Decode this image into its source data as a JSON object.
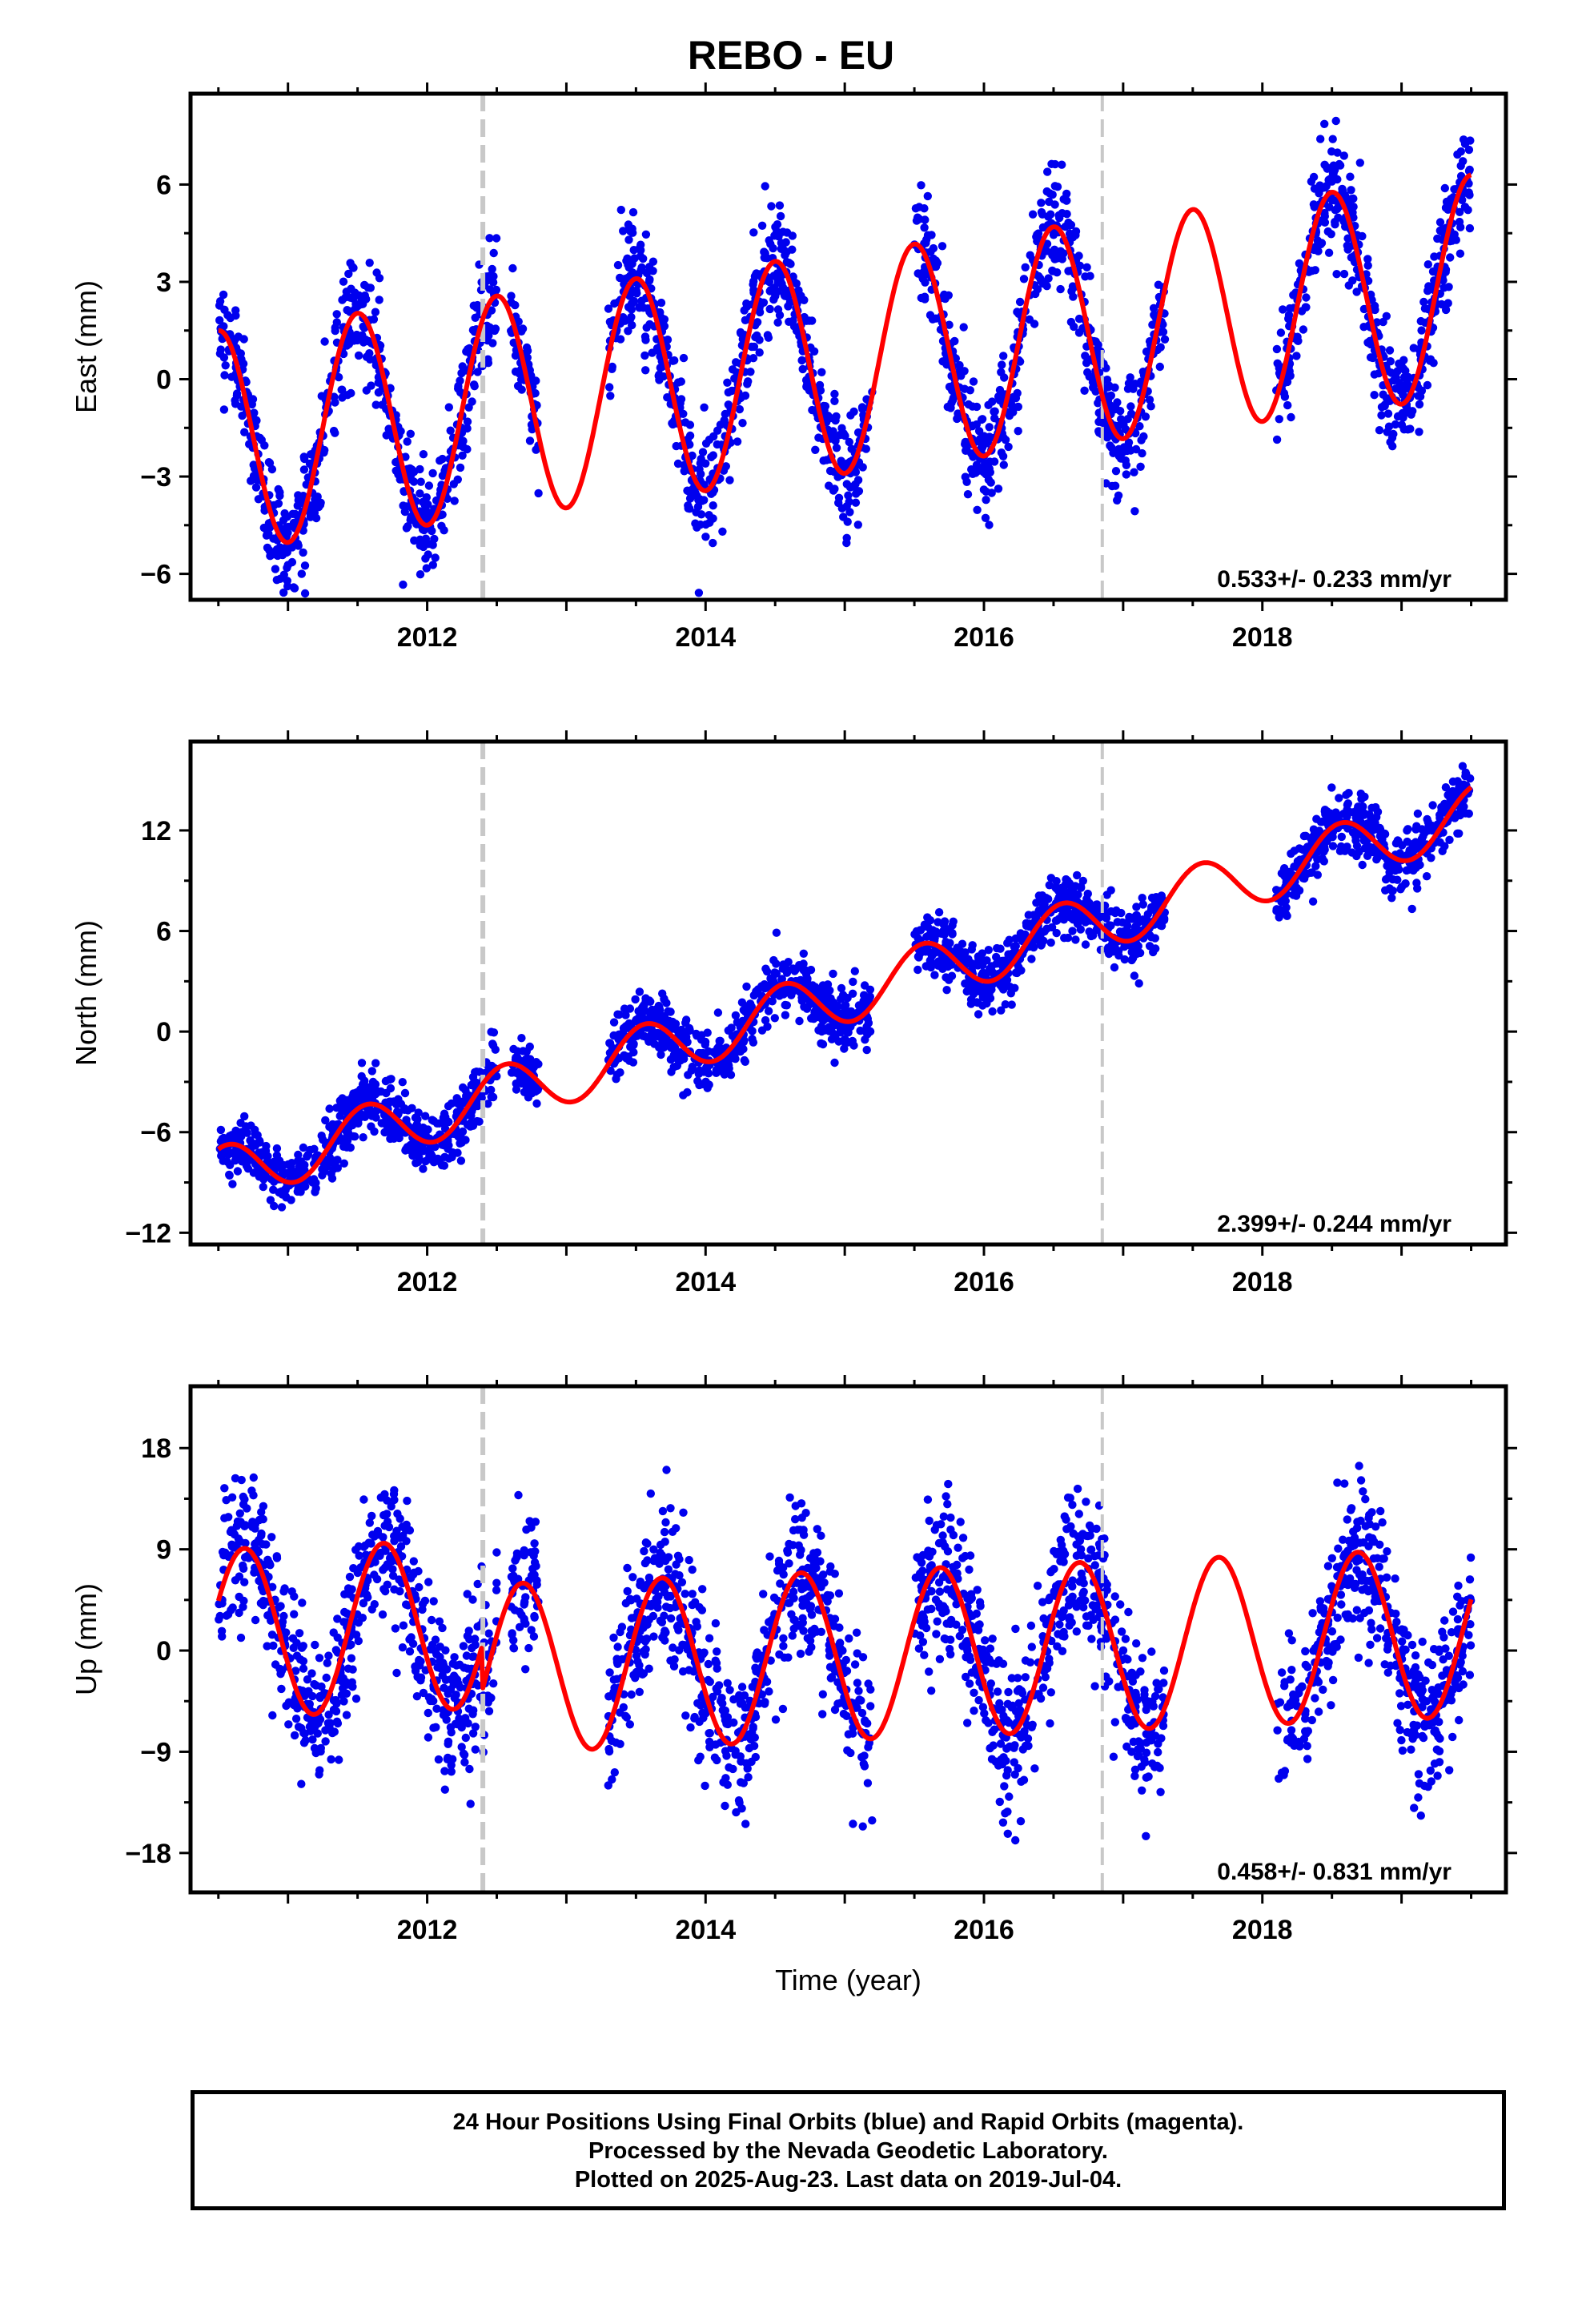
{
  "title": "REBO - EU",
  "colors": {
    "data": "#0000ee",
    "model": "#ff0000",
    "offset_line": "#c8c8c8",
    "frame": "#000000"
  },
  "chart_data": [
    {
      "type": "scatter",
      "component": "east",
      "ylabel": "East (mm)",
      "xlabel": "",
      "xlim": [
        2010.3,
        2019.75
      ],
      "ylim": [
        -6.8,
        8.8
      ],
      "yticks": [
        -6,
        -3,
        0,
        3,
        6
      ],
      "xticks": [
        2012,
        2014,
        2016,
        2018
      ],
      "offsets": [
        2012.4,
        2016.85
      ],
      "rate_text": "0.533+/- 0.233 mm/yr",
      "data_spans": [
        [
          2010.5,
          2012.5
        ],
        [
          2012.6,
          2012.8
        ],
        [
          2013.3,
          2015.2
        ],
        [
          2015.5,
          2017.3
        ],
        [
          2018.1,
          2019.5
        ]
      ],
      "model": {
        "t0": 2010.5,
        "t_end": 2019.5,
        "intercept": -1.9,
        "rate": 0.533,
        "amplitude": 3.4,
        "phase": 1.5708,
        "offset_steps": [
          [
            2016.85,
            0.0
          ]
        ]
      },
      "scatter_sd": 0.85
    },
    {
      "type": "scatter",
      "component": "north",
      "ylabel": "North (mm)",
      "xlabel": "",
      "xlim": [
        2010.3,
        2019.75
      ],
      "ylim": [
        -12.7,
        17.3
      ],
      "yticks": [
        -12,
        -6,
        0,
        6,
        12
      ],
      "xticks": [
        2012,
        2014,
        2016,
        2018
      ],
      "offsets": [
        2012.4,
        2016.85
      ],
      "rate_text": "2.399+/- 0.244 mm/yr",
      "data_spans": [
        [
          2010.5,
          2012.5
        ],
        [
          2012.6,
          2012.8
        ],
        [
          2013.3,
          2015.2
        ],
        [
          2015.5,
          2017.3
        ],
        [
          2018.1,
          2019.5
        ]
      ],
      "model": {
        "t0": 2010.5,
        "t_end": 2019.5,
        "intercept": -8.6,
        "rate": 2.399,
        "amplitude": 1.7,
        "phase": 1.2,
        "offset_steps": []
      },
      "scatter_sd": 0.9
    },
    {
      "type": "scatter",
      "component": "up",
      "ylabel": "Up (mm)",
      "xlabel": "Time (year)",
      "xlim": [
        2010.3,
        2019.75
      ],
      "ylim": [
        -21.5,
        23.5
      ],
      "yticks": [
        -18,
        -9,
        0,
        9,
        18
      ],
      "xticks": [
        2012,
        2014,
        2016,
        2018
      ],
      "offsets": [
        2012.4,
        2016.85
      ],
      "rate_text": "0.458+/- 0.831 mm/yr",
      "data_spans": [
        [
          2010.5,
          2012.5
        ],
        [
          2012.6,
          2012.8
        ],
        [
          2013.3,
          2015.2
        ],
        [
          2015.5,
          2017.3
        ],
        [
          2018.1,
          2019.5
        ]
      ],
      "model": {
        "t0": 2010.5,
        "t_end": 2019.5,
        "intercept": 1.5,
        "rate": 0.458,
        "amplitude": 7.5,
        "phase": 0.4,
        "offset_steps": [
          [
            2012.4,
            -4.0
          ]
        ]
      },
      "scatter_sd": 3.3
    }
  ],
  "footer": {
    "line1": "24 Hour Positions Using Final Orbits (blue) and Rapid Orbits (magenta).",
    "line2": "Processed by the Nevada Geodetic Laboratory.",
    "line3": "Plotted on 2025-Aug-23. Last data on 2019-Jul-04."
  }
}
